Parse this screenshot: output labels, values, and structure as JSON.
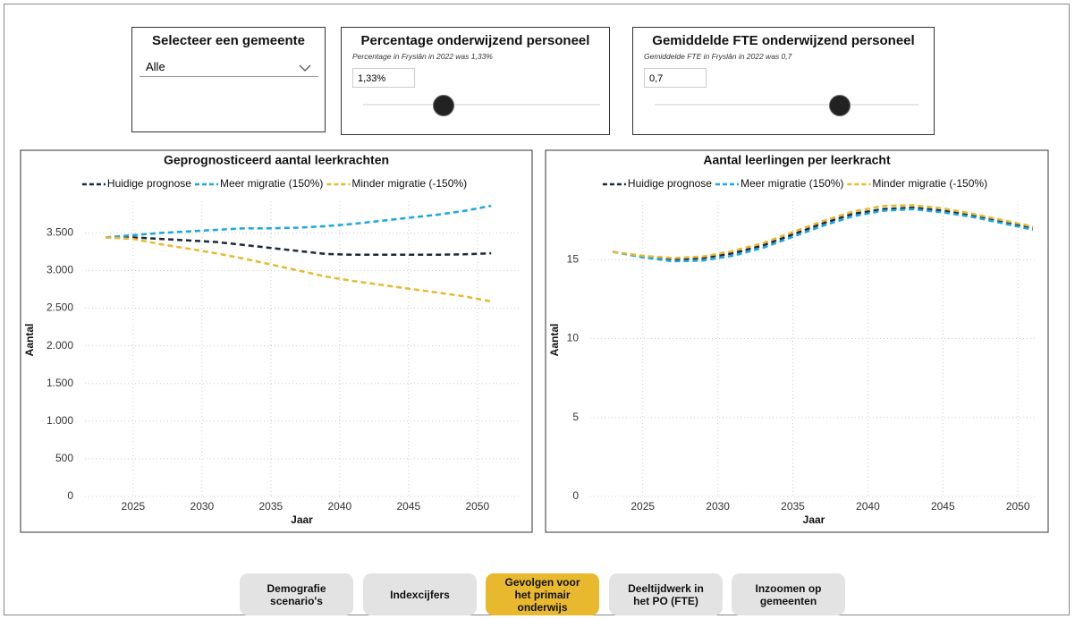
{
  "filters": {
    "gemeente": {
      "title": "Selecteer een gemeente",
      "selected": "Alle"
    },
    "percentage": {
      "title": "Percentage onderwijzend personeel",
      "subtitle": "Percentage in Fryslân in 2022 was 1,33%",
      "input": "1,33%"
    },
    "fte": {
      "title": "Gemiddelde FTE onderwijzend personeel",
      "subtitle": "Gemiddelde FTE in Fryslân in 2022 was 0,7",
      "input": "0,7"
    }
  },
  "chart_data": [
    {
      "type": "line",
      "title": "Geprognosticeerd aantal leerkrachten",
      "x_label": "Jaar",
      "y_label": "Aantal",
      "x": [
        2023,
        2025,
        2027,
        2029,
        2031,
        2033,
        2035,
        2037,
        2039,
        2041,
        2043,
        2045,
        2047,
        2049,
        2051
      ],
      "series": [
        {
          "name": "Huidige prognose",
          "color": "#1b2a3a",
          "values": [
            3440,
            3440,
            3420,
            3400,
            3380,
            3340,
            3300,
            3260,
            3220,
            3210,
            3210,
            3210,
            3210,
            3215,
            3230
          ]
        },
        {
          "name": "Meer migratie (150%)",
          "color": "#1aa7e0",
          "values": [
            3440,
            3470,
            3500,
            3520,
            3540,
            3560,
            3560,
            3570,
            3590,
            3620,
            3660,
            3700,
            3740,
            3790,
            3860
          ]
        },
        {
          "name": "Minder migratie (-150%)",
          "color": "#e8b92e",
          "values": [
            3440,
            3420,
            3350,
            3290,
            3230,
            3160,
            3080,
            3000,
            2920,
            2860,
            2810,
            2760,
            2710,
            2660,
            2590
          ]
        }
      ],
      "xlim": [
        2021.5,
        2053
      ],
      "xticks": [
        2025,
        2030,
        2035,
        2040,
        2045,
        2050
      ],
      "ylim": [
        0,
        3920
      ],
      "yticks": [
        0,
        500,
        {
          "value": 1000,
          "label": "1.000"
        },
        {
          "value": 1500,
          "label": "1.500"
        },
        {
          "value": 2000,
          "label": "2.000"
        },
        {
          "value": 2500,
          "label": "2.500"
        },
        {
          "value": 3000,
          "label": "3.000"
        },
        {
          "value": 3500,
          "label": "3.500"
        }
      ],
      "grid": true
    },
    {
      "type": "line",
      "title": "Aantal leerlingen per leerkracht",
      "x_label": "Jaar",
      "y_label": "Aantal",
      "x": [
        2023,
        2025,
        2027,
        2029,
        2031,
        2033,
        2035,
        2037,
        2039,
        2041,
        2043,
        2045,
        2047,
        2049,
        2051
      ],
      "series": [
        {
          "name": "Huidige prognose",
          "color": "#1b2a3a",
          "values": [
            15.5,
            15.2,
            15.0,
            15.1,
            15.4,
            15.9,
            16.6,
            17.3,
            17.9,
            18.2,
            18.3,
            18.1,
            17.8,
            17.4,
            17.0
          ]
        },
        {
          "name": "Meer migratie (150%)",
          "color": "#1aa7e0",
          "values": [
            15.5,
            15.15,
            14.9,
            14.95,
            15.25,
            15.75,
            16.45,
            17.15,
            17.75,
            18.1,
            18.2,
            18.0,
            17.7,
            17.3,
            16.9
          ]
        },
        {
          "name": "Minder migratie (-150%)",
          "color": "#e8b92e",
          "values": [
            15.5,
            15.25,
            15.1,
            15.2,
            15.55,
            16.05,
            16.75,
            17.45,
            18.05,
            18.4,
            18.45,
            18.25,
            17.9,
            17.5,
            17.1
          ]
        }
      ],
      "xlim": [
        2021.5,
        2051.3
      ],
      "xticks": [
        2025,
        2030,
        2035,
        2040,
        2045,
        2050
      ],
      "ylim": [
        0,
        18.7
      ],
      "yticks": [
        0,
        5,
        10,
        15
      ],
      "grid": true
    }
  ],
  "nav": {
    "buttons": [
      "Demografie scenario's",
      "Indexcijfers",
      "Gevolgen voor het primair onderwijs",
      "Deeltijdwerk in het PO (FTE)",
      "Inzoomen op gemeenten"
    ],
    "active": "Gevolgen voor het primair onderwijs"
  }
}
